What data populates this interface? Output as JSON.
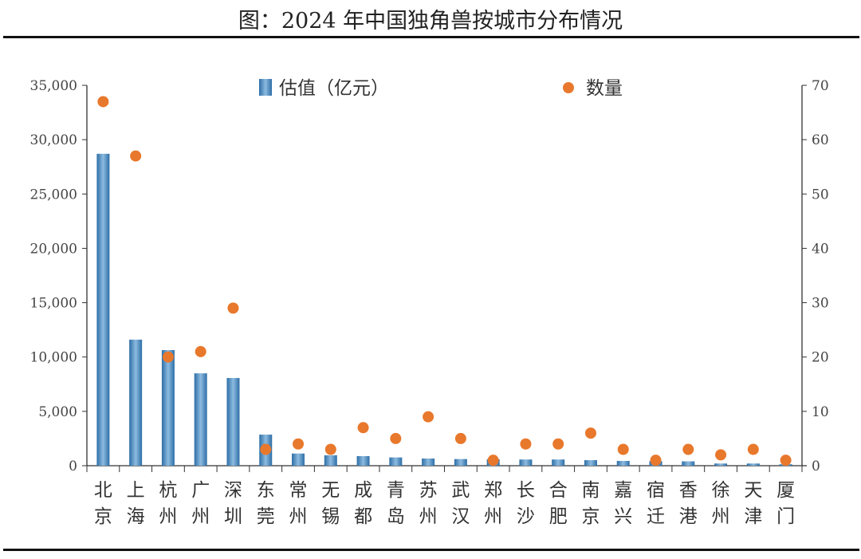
{
  "chart_data": {
    "type": "bar+scatter",
    "title": "图：2024 年中国独角兽按城市分布情况",
    "categories": [
      "北京",
      "上海",
      "杭州",
      "广州",
      "深圳",
      "东莞",
      "常州",
      "无锡",
      "成都",
      "青岛",
      "苏州",
      "武汉",
      "郑州",
      "长沙",
      "合肥",
      "南京",
      "嘉兴",
      "宿迁",
      "香港",
      "徐州",
      "天津",
      "厦门"
    ],
    "series": [
      {
        "name": "估值（亿元）",
        "type": "bar",
        "axis": "left",
        "color": "#3a7fb5",
        "values": [
          28700,
          11600,
          10640,
          8500,
          8070,
          2860,
          1120,
          960,
          880,
          760,
          660,
          610,
          600,
          570,
          570,
          510,
          440,
          420,
          400,
          200,
          200,
          130
        ]
      },
      {
        "name": "数量",
        "type": "scatter",
        "axis": "right",
        "color": "#e8782c",
        "values": [
          67,
          57,
          20,
          21,
          29,
          3,
          4,
          3,
          7,
          5,
          9,
          5,
          1,
          4,
          4,
          6,
          3,
          1,
          3,
          2,
          3,
          1
        ]
      }
    ],
    "ylim_left": [
      0,
      35000
    ],
    "yticks_left": [
      "0",
      "5,000",
      "10,000",
      "15,000",
      "20,000",
      "25,000",
      "30,000",
      "35,000"
    ],
    "ylim_right": [
      0,
      70
    ],
    "yticks_right": [
      "0",
      "10",
      "20",
      "30",
      "40",
      "50",
      "60",
      "70"
    ],
    "legend_placement": "top",
    "grid": false
  }
}
